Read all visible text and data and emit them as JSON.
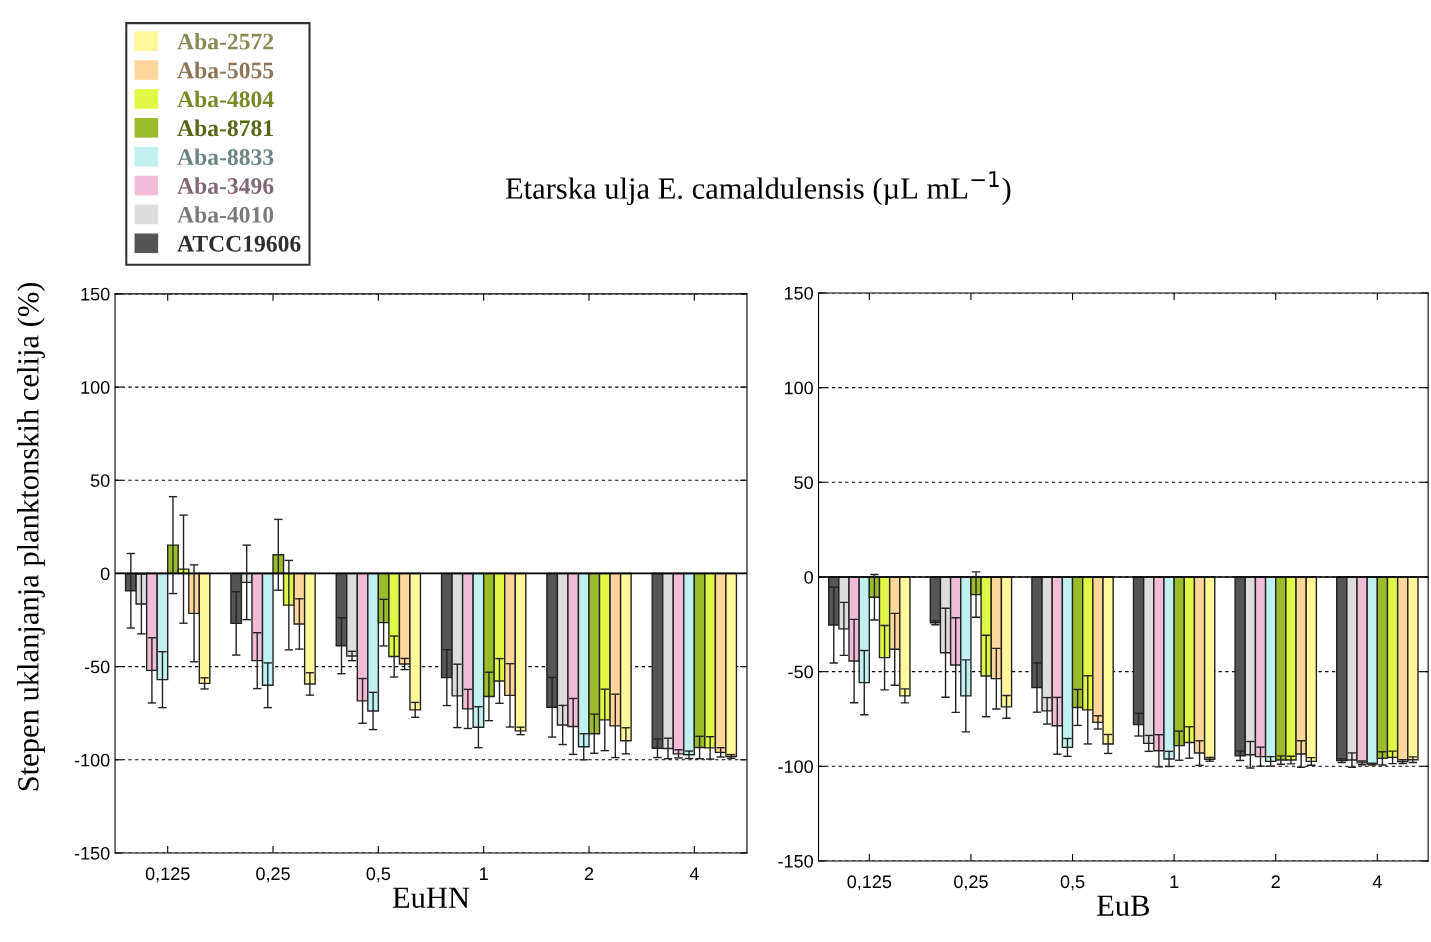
{
  "chart_data": [
    {
      "type": "bar",
      "title": "Etarska ulja E. camaldulensis (µL mL$^{−1}$)",
      "ylabel": "Stepen uklanjanja planktonskih celija (%)",
      "xlabel": "EuHN",
      "categories": [
        "0,125",
        "0,25",
        "0,5",
        "1",
        "2",
        "4"
      ],
      "ylim": [
        -150,
        150
      ],
      "yticks": [
        -150,
        -100,
        -50,
        0,
        50,
        100,
        150
      ],
      "grid": "y",
      "legend": "top left",
      "series": [
        {
          "name": "ATCC19606",
          "color": "#555555",
          "values": [
            -9.3,
            -26.8,
            -38.8,
            -55.9,
            -71.8,
            -93.8
          ],
          "errors": [
            20,
            17,
            15,
            15,
            16,
            5
          ]
        },
        {
          "name": "Aba-4010",
          "color": "#dddddd",
          "values": [
            -16.4,
            -4.8,
            -44.3,
            -65.7,
            -81.3,
            -93.9
          ],
          "errors": [
            16,
            20,
            2.5,
            17,
            10.5,
            5.5
          ]
        },
        {
          "name": "Aba-3496",
          "color": "#f0bcd8",
          "values": [
            -52,
            -46.8,
            -68.4,
            -72.7,
            -82.1,
            -96.8
          ],
          "errors": [
            17.5,
            15,
            12,
            10.5,
            15,
            2.2
          ]
        },
        {
          "name": "Aba-8833",
          "color": "#c0f0f0",
          "values": [
            -57,
            -60,
            -73.8,
            -82.5,
            -93,
            -97.3
          ],
          "errors": [
            15,
            12,
            10,
            11,
            7,
            2
          ]
        },
        {
          "name": "Aba-8781",
          "color": "#9abb2a",
          "values": [
            15.2,
            10,
            -26.4,
            -66,
            -86,
            -93.4
          ],
          "errors": [
            26,
            19,
            12.5,
            13,
            10.5,
            6
          ]
        },
        {
          "name": "Aba-4804",
          "color": "#e0f845",
          "values": [
            2.3,
            -17,
            -44.6,
            -57.7,
            -78.6,
            -93.6
          ],
          "errors": [
            29,
            24,
            11,
            12,
            16.5,
            6
          ]
        },
        {
          "name": "Aba-5055",
          "color": "#ffd699",
          "values": [
            -21.4,
            -27.1,
            -48.6,
            -65.4,
            -81.8,
            -96
          ],
          "errors": [
            26,
            13.5,
            3,
            17,
            17,
            2.5
          ]
        },
        {
          "name": "Aba-2572",
          "color": "#fff799",
          "values": [
            -59,
            -59.3,
            -73.2,
            -84.5,
            -89.8,
            -98.2
          ],
          "errors": [
            3,
            6,
            4,
            2,
            7,
            1
          ]
        }
      ]
    },
    {
      "type": "bar",
      "xlabel": "EuB",
      "categories": [
        "0,125",
        "0,25",
        "0,5",
        "1",
        "2",
        "4"
      ],
      "ylim": [
        -150,
        150
      ],
      "yticks": [
        -150,
        -100,
        -50,
        0,
        50,
        100,
        150
      ],
      "grid": "y",
      "series": [
        {
          "color": "#555555",
          "values": [
            -25.4,
            -24.2,
            -58.4,
            -78,
            -94.4,
            -97
          ],
          "errors": [
            20,
            1,
            13,
            6,
            2.5,
            1
          ]
        },
        {
          "color": "#dddddd",
          "values": [
            -27.4,
            -40,
            -70.7,
            -87.9,
            -93.9,
            -96.7
          ],
          "errors": [
            14,
            23.5,
            7,
            4.2,
            7,
            3.8
          ]
        },
        {
          "color": "#f0bcd8",
          "values": [
            -44.4,
            -46.5,
            -78.6,
            -91.8,
            -94.9,
            -98.2
          ],
          "errors": [
            22,
            25,
            15,
            8.5,
            5,
            1
          ]
        },
        {
          "color": "#c0f0f0",
          "values": [
            -55.8,
            -62.8,
            -90,
            -96.1,
            -97.4,
            -98.8
          ],
          "errors": [
            17,
            19,
            4.7,
            4,
            2.5,
            0.5
          ]
        },
        {
          "color": "#9abb2a",
          "values": [
            -10.7,
            -9.3,
            -68.9,
            -89.1,
            -96.7,
            -95.8
          ],
          "errors": [
            12,
            12,
            9.5,
            7.7,
            2.2,
            3.5
          ]
        },
        {
          "color": "#e0f845",
          "values": [
            -42.6,
            -52.3,
            -70.2,
            -87.4,
            -96.7,
            -95.3
          ],
          "errors": [
            17,
            21.5,
            18,
            8.3,
            2,
            3.3
          ]
        },
        {
          "color": "#ffd699",
          "values": [
            -38.2,
            -53.7,
            -76.8,
            -93,
            -93.5,
            -97.5
          ],
          "errors": [
            19,
            16,
            3.5,
            6.5,
            7,
            1
          ]
        },
        {
          "color": "#fff799",
          "values": [
            -62.8,
            -68.6,
            -88.2,
            -96.3,
            -97.4,
            -96.5
          ],
          "errors": [
            3.7,
            6,
            5,
            1,
            2,
            1.5
          ]
        }
      ]
    }
  ]
}
